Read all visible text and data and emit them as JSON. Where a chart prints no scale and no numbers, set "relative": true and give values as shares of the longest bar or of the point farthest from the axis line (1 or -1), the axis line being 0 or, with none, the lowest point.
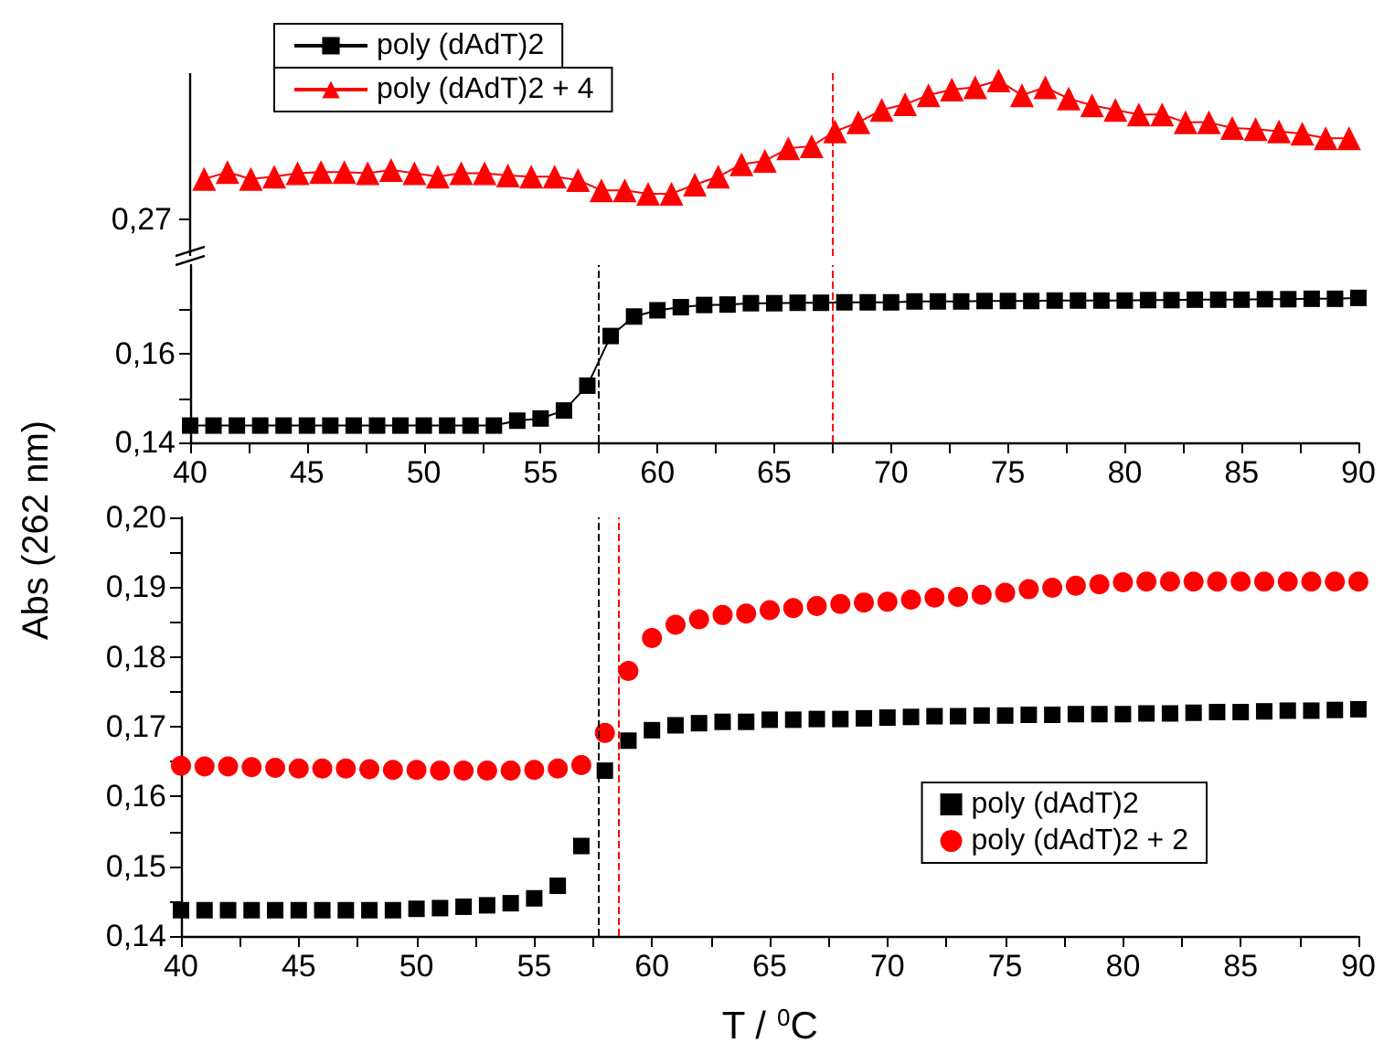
{
  "chart_data": [
    {
      "type": "line",
      "relative": true,
      "annotations": [
        "0,27"
      ],
      "xlim": [
        40,
        90
      ],
      "tick_labels": false,
      "legend": "top left",
      "marker": "triangle",
      "line_style": "solid",
      "x": [
        40.6,
        41.6,
        42.6,
        43.6,
        44.6,
        45.6,
        46.6,
        47.6,
        48.6,
        49.6,
        50.6,
        51.6,
        52.6,
        53.6,
        54.6,
        55.6,
        56.6,
        57.6,
        58.6,
        59.6,
        60.6,
        61.6,
        62.6,
        63.6,
        64.6,
        65.6,
        66.6,
        67.6,
        68.6,
        69.6,
        70.6,
        71.6,
        72.6,
        73.6,
        74.6,
        75.6,
        76.6,
        77.6,
        78.6,
        79.6,
        80.6,
        81.6,
        82.6,
        83.6,
        84.6,
        85.6,
        86.6,
        87.6,
        88.6,
        89.6
      ],
      "series": [
        {
          "name": "poly (dAdT)2 + 4",
          "color": "#ff0000",
          "values": [
            0.13,
            0.19,
            0.13,
            0.15,
            0.18,
            0.19,
            0.19,
            0.18,
            0.21,
            0.18,
            0.15,
            0.18,
            0.18,
            0.16,
            0.15,
            0.15,
            0.12,
            0.03,
            0.03,
            0,
            0,
            0.08,
            0.15,
            0.26,
            0.29,
            0.4,
            0.42,
            0.55,
            0.63,
            0.74,
            0.79,
            0.87,
            0.92,
            0.94,
            1,
            0.87,
            0.94,
            0.84,
            0.78,
            0.74,
            0.7,
            0.7,
            0.63,
            0.63,
            0.58,
            0.57,
            0.55,
            0.53,
            0.49,
            0.49
          ]
        }
      ],
      "ref_lines": [
        {
          "axis": "x",
          "value": 67.5,
          "color": "#ff0000",
          "line_style": "dashed"
        }
      ]
    },
    {
      "type": "line",
      "xlim": [
        40,
        90
      ],
      "ylim": [
        0.14,
        0.18
      ],
      "xticks": [
        40,
        {
          "value": 42.5,
          "label": null
        },
        45,
        {
          "value": 47.5,
          "label": null
        },
        50,
        {
          "value": 52.5,
          "label": null
        },
        55,
        {
          "value": 57.5,
          "label": null
        },
        60,
        {
          "value": 62.5,
          "label": null
        },
        65,
        {
          "value": 67.5,
          "label": null
        },
        70,
        {
          "value": 72.5,
          "label": null
        },
        75,
        {
          "value": 77.5,
          "label": null
        },
        80,
        {
          "value": 82.5,
          "label": null
        },
        85,
        {
          "value": 87.5,
          "label": null
        },
        90
      ],
      "yticks": [
        {
          "value": 0.14,
          "label": "0,14"
        },
        {
          "value": 0.15,
          "label": null
        },
        {
          "value": 0.16,
          "label": "0,16"
        },
        {
          "value": 0.17,
          "label": null
        }
      ],
      "legend": "top left",
      "marker": "square",
      "line_style": "solid",
      "x": [
        40,
        41,
        42,
        43,
        44,
        45,
        46,
        47,
        48,
        49,
        50,
        51,
        52,
        53,
        54,
        55,
        56,
        57,
        58,
        59,
        60,
        61,
        62,
        63,
        64,
        65,
        66,
        67,
        68,
        69,
        70,
        71,
        72,
        73,
        74,
        75,
        76,
        77,
        78,
        79,
        80,
        81,
        82,
        83,
        84,
        85,
        86,
        87,
        88,
        89,
        90
      ],
      "series": [
        {
          "name": "poly (dAdT)2",
          "color": "#000000",
          "values": [
            0.1438,
            0.1438,
            0.1438,
            0.1438,
            0.1438,
            0.1438,
            0.1438,
            0.1438,
            0.1438,
            0.1438,
            0.1438,
            0.1438,
            0.1438,
            0.1438,
            0.1449,
            0.1454,
            0.1472,
            0.1528,
            0.164,
            0.1684,
            0.1698,
            0.1705,
            0.171,
            0.1711,
            0.1714,
            0.1714,
            0.1715,
            0.1715,
            0.1716,
            0.1716,
            0.1716,
            0.1718,
            0.1718,
            0.1718,
            0.1719,
            0.1719,
            0.1719,
            0.172,
            0.172,
            0.172,
            0.172,
            0.1721,
            0.1721,
            0.1722,
            0.1722,
            0.1722,
            0.1723,
            0.1723,
            0.1724,
            0.1724,
            0.1726
          ]
        }
      ],
      "ref_lines": [
        {
          "axis": "x",
          "value": 57.5,
          "color": "#000000",
          "line_style": "dashed"
        },
        {
          "axis": "x",
          "value": 67.5,
          "color": "#ff0000",
          "line_style": "dashed"
        }
      ]
    },
    {
      "type": "scatter",
      "xlabel": "T / $^{0}$C",
      "ylabel": "Abs (262 nm)",
      "xlim": [
        40,
        90
      ],
      "ylim": [
        0.14,
        0.2
      ],
      "xticks": [
        40,
        {
          "value": 42.5,
          "label": null
        },
        45,
        {
          "value": 47.5,
          "label": null
        },
        50,
        {
          "value": 52.5,
          "label": null
        },
        55,
        {
          "value": 57.5,
          "label": null
        },
        60,
        {
          "value": 62.5,
          "label": null
        },
        65,
        {
          "value": 67.5,
          "label": null
        },
        70,
        {
          "value": 72.5,
          "label": null
        },
        75,
        {
          "value": 77.5,
          "label": null
        },
        80,
        {
          "value": 82.5,
          "label": null
        },
        85,
        {
          "value": 87.5,
          "label": null
        },
        90
      ],
      "yticks": [
        {
          "value": 0.14,
          "label": "0,14"
        },
        {
          "value": 0.145,
          "label": null
        },
        {
          "value": 0.15,
          "label": "0,15"
        },
        {
          "value": 0.155,
          "label": null
        },
        {
          "value": 0.16,
          "label": "0,16"
        },
        {
          "value": 0.165,
          "label": null
        },
        {
          "value": 0.17,
          "label": "0,17"
        },
        {
          "value": 0.175,
          "label": null
        },
        {
          "value": 0.18,
          "label": "0,18"
        },
        {
          "value": 0.185,
          "label": null
        },
        {
          "value": 0.19,
          "label": "0,19"
        },
        {
          "value": 0.195,
          "label": null
        },
        {
          "value": 0.2,
          "label": "0,20"
        }
      ],
      "legend": "bottom right",
      "x": [
        40,
        41,
        42,
        43,
        44,
        45,
        46,
        47,
        48,
        49,
        50,
        51,
        52,
        53,
        54,
        55,
        56,
        57,
        58,
        59,
        60,
        61,
        62,
        63,
        64,
        65,
        66,
        67,
        68,
        69,
        70,
        71,
        72,
        73,
        74,
        75,
        76,
        77,
        78,
        79,
        80,
        81,
        82,
        83,
        84,
        85,
        86,
        87,
        88,
        89,
        90
      ],
      "series": [
        {
          "name": "poly (dAdT)2",
          "color": "#000000",
          "marker": "square",
          "values": [
            0.1437,
            0.1437,
            0.1437,
            0.1437,
            0.1437,
            0.1437,
            0.1437,
            0.1437,
            0.1437,
            0.1437,
            0.1439,
            0.144,
            0.1442,
            0.1444,
            0.1447,
            0.1454,
            0.1472,
            0.1529,
            0.1637,
            0.168,
            0.1695,
            0.1702,
            0.1705,
            0.1707,
            0.1707,
            0.171,
            0.171,
            0.1711,
            0.1711,
            0.1712,
            0.1713,
            0.1714,
            0.1715,
            0.1715,
            0.1716,
            0.1716,
            0.1717,
            0.1717,
            0.1718,
            0.1718,
            0.1718,
            0.1719,
            0.1719,
            0.172,
            0.1721,
            0.1721,
            0.1722,
            0.1723,
            0.1723,
            0.1724,
            0.1725
          ]
        },
        {
          "name": "poly (dAdT)2 + 2",
          "color": "#ff0000",
          "marker": "circle",
          "values": [
            0.1644,
            0.1643,
            0.1643,
            0.1642,
            0.1641,
            0.164,
            0.164,
            0.164,
            0.1639,
            0.1638,
            0.1638,
            0.1637,
            0.1637,
            0.1637,
            0.1637,
            0.1638,
            0.164,
            0.1645,
            0.1691,
            0.178,
            0.1827,
            0.1846,
            0.1854,
            0.186,
            0.1862,
            0.1867,
            0.187,
            0.1873,
            0.1876,
            0.1878,
            0.1879,
            0.1882,
            0.1885,
            0.1886,
            0.1889,
            0.1892,
            0.1897,
            0.1899,
            0.1902,
            0.1904,
            0.1907,
            0.1908,
            0.1908,
            0.1908,
            0.1908,
            0.1908,
            0.1908,
            0.1908,
            0.1908,
            0.1908,
            0.1908
          ]
        }
      ],
      "ref_lines": [
        {
          "axis": "x",
          "value": 57.7,
          "color": "#000000",
          "line_style": "dashed"
        },
        {
          "axis": "x",
          "value": 58.6,
          "color": "#ff0000",
          "line_style": "dashed"
        }
      ]
    }
  ]
}
